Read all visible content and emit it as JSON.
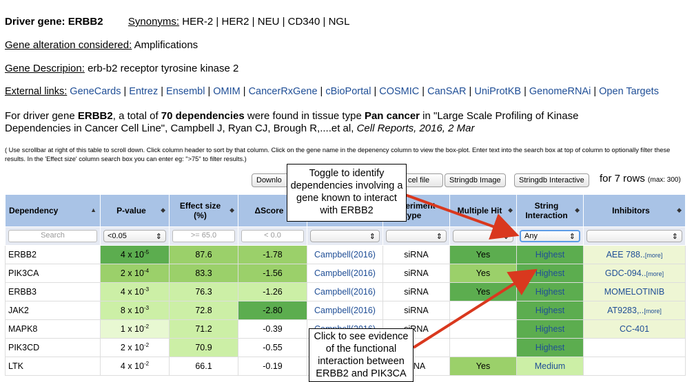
{
  "header": {
    "driver_label": "Driver gene: ERBB2",
    "synonyms_label": "Synonyms:",
    "synonyms_value": " HER-2 | HER2 | NEU | CD340 | NGL",
    "alteration_label": "Gene alteration considered:",
    "alteration_value": " Amplifications",
    "description_label": "Gene Descripion:",
    "description_value": " erb-b2 receptor tyrosine kinase 2",
    "external_label": "External links:",
    "links": [
      "GeneCards",
      "Entrez",
      "Ensembl",
      "OMIM",
      "CancerRxGene",
      "cBioPortal",
      "COSMIC",
      "CanSAR",
      "UniProtKB",
      "GenomeRNAi",
      "Open Targets"
    ]
  },
  "summary": {
    "p1": "For driver gene ",
    "gene": "ERBB2",
    "p2": ", a total of ",
    "count": "70 dependencies",
    "p3": " were found in tissue type ",
    "tissue": "Pan cancer",
    "p4": " in \"Large Scale Profiling of Kinase",
    "line2": "Dependencies in Cancer Cell Line\", Campbell J, Ryan CJ, Brough R,....et al, ",
    "journal": "Cell Reports, 2016, 2 Mar"
  },
  "instructions": "( Use scrollbar at right of this table to scroll down. Click column header to sort by that column. Click on the gene name in the depenency column to view the box-plot. Enter text into the search box at top of column to optionally filter these results. In the 'Effect size' column search box you can enter eg: \">75\" to filter results.)",
  "buttons": {
    "download": "Downlo",
    "excel": "cel file",
    "string_image": "Stringdb Image",
    "string_interactive": "Stringdb Interactive"
  },
  "rows_label": "for 7 rows",
  "rows_max": "(max: 300)",
  "columns": [
    "Dependency",
    "P-value",
    "Effect size (%)",
    "ΔScore",
    "",
    "Experiment type",
    "Multiple Hit",
    "String Interaction",
    "Inhibitors"
  ],
  "filters": {
    "search_placeholder": "Search",
    "pvalue": "<0.05",
    "effect_placeholder": ">= 65.0",
    "score_placeholder": "< 0.0",
    "string": "Any"
  },
  "rows": [
    {
      "dep": "ERBB2",
      "pv": "4 x 10",
      "pexp": "-5",
      "eff": "87.6",
      "score": "-1.78",
      "study": "Campbell(2016)",
      "exp": "siRNA",
      "hit": "Yes",
      "str": "Highest",
      "inh": "AEE 788..",
      "more": "[more]"
    },
    {
      "dep": "PIK3CA",
      "pv": "2 x 10",
      "pexp": "-4",
      "eff": "83.3",
      "score": "-1.56",
      "study": "Campbell(2016)",
      "exp": "siRNA",
      "hit": "Yes",
      "str": "Highest",
      "inh": "GDC-094..",
      "more": "[more]"
    },
    {
      "dep": "ERBB3",
      "pv": "4 x 10",
      "pexp": "-3",
      "eff": "76.3",
      "score": "-1.26",
      "study": "Campbell(2016)",
      "exp": "siRNA",
      "hit": "Yes",
      "str": "Highest",
      "inh": "MOMELOTINIB",
      "more": ""
    },
    {
      "dep": "JAK2",
      "pv": "8 x 10",
      "pexp": "-3",
      "eff": "72.8",
      "score": "-2.80",
      "study": "Campbell(2016)",
      "exp": "siRNA",
      "hit": "",
      "str": "Highest",
      "inh": "AT9283,..",
      "more": "[more]"
    },
    {
      "dep": "MAPK8",
      "pv": "1 x 10",
      "pexp": "-2",
      "eff": "71.2",
      "score": "-0.39",
      "study": "Campbell(2016)",
      "exp": "siRNA",
      "hit": "",
      "str": "Highest",
      "inh": "CC-401",
      "more": ""
    },
    {
      "dep": "PIK3CD",
      "pv": "2 x 10",
      "pexp": "-2",
      "eff": "70.9",
      "score": "-0.55",
      "study": "",
      "exp": "",
      "hit": "",
      "str": "Highest",
      "inh": "",
      "more": ""
    },
    {
      "dep": "LTK",
      "pv": "4 x 10",
      "pexp": "-2",
      "eff": "66.1",
      "score": "-0.19",
      "study": "",
      "exp": "RNA",
      "hit": "Yes",
      "str": "Medium",
      "inh": "",
      "more": ""
    }
  ],
  "callouts": {
    "toggle": [
      "Toggle to identify",
      "dependencies involving a",
      "gene known to interact",
      "with ERBB2"
    ],
    "evidence": [
      "Click to see evidence",
      "of the functional",
      "interaction between",
      "ERBB2 and PIK3CA"
    ]
  },
  "colors": {
    "arrow": "#d9381e",
    "header_bg": "#a9c3e6"
  }
}
